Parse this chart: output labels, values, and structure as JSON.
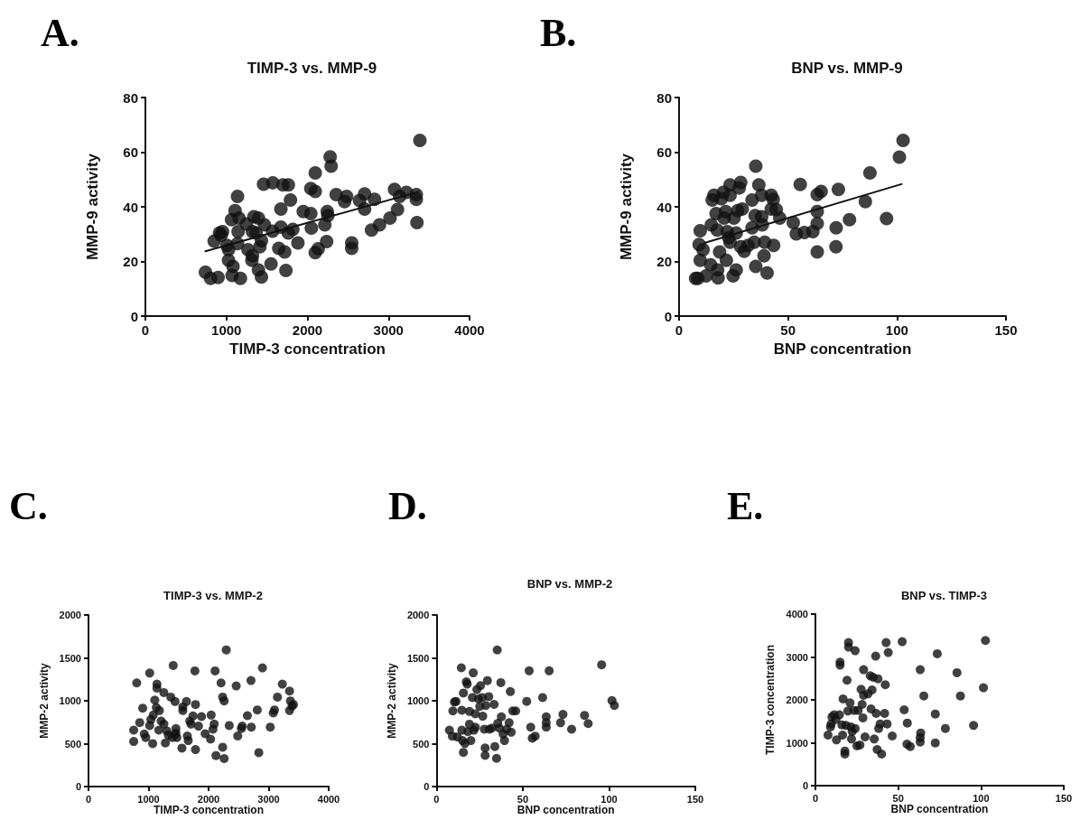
{
  "chart_data": [
    {
      "type": "scatter",
      "title": "TIMP-3 vs. MMP-9",
      "xlabel": "TIMP-3 concentration",
      "ylabel": "MMP-9 activity",
      "annotations": [
        "A."
      ],
      "marker": "circle",
      "xlim": [
        0,
        4000
      ],
      "xticks": [
        0,
        1000,
        2000,
        3000,
        4000
      ],
      "ylim": [
        0,
        80
      ],
      "yticks": [
        0,
        20,
        40,
        60,
        80
      ],
      "series": [
        {
          "color": "#111111",
          "x": [
            741,
            804,
            897,
            849,
            915,
            952,
            934,
            1137,
            1107,
            1063,
            1155,
            1007,
            1026,
            1137,
            1026,
            1081,
            1070,
            1173,
            1144,
            1247,
            1266,
            1321,
            1339,
            1395,
            1469,
            1365,
            1432,
            1413,
            1321,
            1314,
            1395,
            1432,
            1458,
            1572,
            1550,
            1568,
            1672,
            1672,
            1646,
            1719,
            1734,
            1697,
            1764,
            1790,
            1764,
            1819,
            1882,
            1948,
            2041,
            2048,
            2096,
            2041,
            2096,
            2096,
            2133,
            2214,
            2244,
            2251,
            2236,
            2280,
            2292,
            2354,
            2458,
            2483,
            2546,
            2546,
            2642,
            2705,
            2705,
            2827,
            2790,
            2889,
            3018,
            3074,
            3111,
            3137,
            3221,
            3343,
            3343,
            3351,
            3387
          ],
          "values": [
            16,
            13.8,
            14.1,
            27.4,
            30.4,
            30.9,
            29.6,
            43.8,
            38.6,
            35.3,
            35.9,
            25.9,
            24.3,
            26.5,
            20.4,
            18.2,
            14.9,
            13.8,
            30.9,
            33.7,
            24.3,
            30.9,
            36.4,
            35.9,
            33.4,
            30.4,
            27.6,
            25.4,
            22.1,
            20.4,
            16.9,
            14.3,
            48.3,
            48.8,
            19.1,
            31.1,
            32.6,
            39.2,
            24.8,
            23.5,
            16.7,
            48,
            48,
            42.5,
            30.4,
            31.7,
            26.8,
            38.3,
            37.5,
            32.2,
            52.4,
            46.7,
            45.6,
            23.2,
            24.6,
            33.4,
            38.3,
            36.8,
            27.3,
            58.3,
            54.9,
            44.5,
            41.9,
            43.8,
            26.8,
            24.8,
            42.3,
            44.7,
            39.2,
            42.7,
            31.5,
            33.4,
            35.9,
            46.4,
            39,
            43.8,
            45.3,
            44.5,
            42.7,
            34.2,
            64.3
          ]
        },
        {
          "type": "line",
          "marker": "none",
          "color": "#111111",
          "x": [
            740,
            3370
          ],
          "values": [
            23.7,
            45.5
          ]
        }
      ]
    },
    {
      "type": "scatter",
      "title": "BNP vs. MMP-9",
      "xlabel": "BNP concentration",
      "ylabel": "MMP-9 activity",
      "annotations": [
        "B."
      ],
      "marker": "circle",
      "xlim": [
        0,
        150
      ],
      "xticks": [
        0,
        50,
        100,
        150
      ],
      "ylim": [
        0,
        80
      ],
      "yticks": [
        0,
        20,
        40,
        60,
        80
      ],
      "series": [
        {
          "color": "#111111",
          "x": [
            7.6,
            8.6,
            9.7,
            9.7,
            9.2,
            11,
            12.4,
            14.5,
            14.8,
            15.2,
            16,
            17,
            17.7,
            17.9,
            17.5,
            18.6,
            19.4,
            20.3,
            20.7,
            21.4,
            21.7,
            22.1,
            22.8,
            23.4,
            23.4,
            23.4,
            25.2,
            24.8,
            26.2,
            26.2,
            26.9,
            27.6,
            28.3,
            29,
            28.3,
            29.9,
            31.7,
            33.5,
            33.5,
            34.5,
            35.2,
            35.2,
            36.6,
            34.9,
            37.9,
            37.9,
            38.2,
            39,
            39.3,
            40.4,
            42.3,
            43.2,
            42.3,
            44.6,
            43.4,
            46.2,
            52.4,
            53.8,
            55.6,
            57.5,
            61.4,
            63.4,
            63.4,
            65.2,
            63.4,
            63.4,
            72.1,
            73.1,
            72,
            78.2,
            85.5,
            87.6,
            95.2,
            101.1,
            102.8
          ],
          "values": [
            13.8,
            13.8,
            31.2,
            20.4,
            26.2,
            24.3,
            14.7,
            18.8,
            33.4,
            42.5,
            44.2,
            37.5,
            16.9,
            14,
            31.5,
            23.5,
            43,
            45.3,
            35.9,
            38.3,
            20.4,
            30.9,
            28.7,
            44.2,
            48,
            27,
            35.9,
            14.7,
            16.9,
            30.4,
            38.6,
            46.9,
            48.9,
            39.2,
            25.4,
            23.7,
            25.9,
            42.5,
            32.3,
            27,
            54.9,
            18.2,
            48,
            36.8,
            44.2,
            36.4,
            33.4,
            22.1,
            27,
            15.8,
            44.2,
            42.7,
            39.2,
            39,
            25.9,
            35.9,
            34.2,
            30.1,
            48.2,
            30.6,
            30.9,
            38.3,
            44.5,
            45.6,
            33.9,
            23.5,
            32.3,
            46.4,
            25.4,
            35.3,
            41.9,
            52.4,
            35.7,
            58.2,
            64.3
          ]
        },
        {
          "type": "line",
          "marker": "none",
          "color": "#111111",
          "x": [
            11.7,
            102.1
          ],
          "values": [
            26.8,
            48.3
          ]
        }
      ]
    },
    {
      "type": "scatter",
      "title": "TIMP-3 vs. MMP-2",
      "xlabel": "TIMP-3 concentration",
      "ylabel": "MMP-2 activity",
      "annotations": [
        "C."
      ],
      "marker": "circle",
      "xlim": [
        0,
        4000
      ],
      "xticks": [
        0,
        1000,
        2000,
        3000,
        4000
      ],
      "ylim": [
        0,
        2000
      ],
      "yticks": [
        0,
        500,
        1000,
        1500,
        2000
      ],
      "series": [
        {
          "color": "#111111",
          "x": [
            753,
            753,
            803,
            853,
            903,
            929,
            954,
            1019,
            1019,
            1039,
            1069,
            1079,
            1104,
            1130,
            1140,
            1140,
            1180,
            1170,
            1210,
            1255,
            1255,
            1280,
            1305,
            1330,
            1370,
            1396,
            1411,
            1441,
            1441,
            1456,
            1471,
            1456,
            1556,
            1571,
            1571,
            1631,
            1646,
            1661,
            1686,
            1707,
            1741,
            1772,
            1782,
            1782,
            1832,
            1882,
            1943,
            2033,
            2043,
            2073,
            2093,
            2108,
            2123,
            2208,
            2234,
            2259,
            2234,
            2259,
            2294,
            2344,
            2460,
            2485,
            2545,
            2560,
            2646,
            2706,
            2711,
            2811,
            2836,
            2897,
            3027,
            3077,
            3097,
            3147,
            3228,
            3348,
            3363,
            3389,
            3414,
            3348
          ],
          "values": [
            658,
            525,
            1208,
            746,
            914,
            613,
            571,
            1323,
            711,
            781,
            501,
            833,
            1008,
            921,
            1148,
            1194,
            886,
            658,
            763,
            1096,
            728,
            508,
            648,
            599,
            1043,
            571,
            1411,
            991,
            606,
            676,
            571,
            623,
            448,
            928,
            886,
            991,
            589,
            536,
            763,
            728,
            823,
            1348,
            956,
            431,
            704,
            816,
            616,
            553,
            833,
            669,
            728,
            1348,
            361,
            1208,
            1043,
            998,
            459,
            326,
            1593,
            711,
            1173,
            589,
            676,
            704,
            826,
            1236,
            693,
            893,
            396,
            1383,
            693,
            858,
            893,
            1043,
            1194,
            1113,
            998,
            938,
            956,
            886
          ]
        }
      ]
    },
    {
      "type": "scatter",
      "title": "BNP vs. MMP-2",
      "xlabel": "BNP concentration",
      "ylabel": "MMP-2 activity",
      "annotations": [
        "D."
      ],
      "marker": "circle",
      "xlim": [
        0,
        150
      ],
      "xticks": [
        0,
        50,
        100,
        150
      ],
      "ylim": [
        0,
        2000
      ],
      "yticks": [
        0,
        500,
        1000,
        1500,
        2000
      ],
      "series": [
        {
          "color": "#111111",
          "x": [
            7.5,
            9.2,
            10.4,
            9.5,
            11.3,
            12.1,
            14.4,
            14.7,
            14.7,
            15.1,
            15.6,
            15.6,
            16.5,
            17.3,
            17.8,
            18.2,
            19.1,
            19.1,
            19.9,
            20.8,
            21.3,
            21.7,
            22.5,
            22.5,
            23.4,
            24.3,
            25.1,
            25.5,
            26.5,
            26.8,
            28.2,
            28.2,
            27.7,
            28.6,
            29.5,
            30.3,
            30.7,
            32.1,
            33.4,
            33.8,
            34.8,
            35.2,
            35.5,
            36.4,
            37.3,
            37.6,
            38.6,
            39.4,
            40.7,
            42.8,
            42.1,
            43.3,
            44.2,
            45.9,
            52.3,
            53.7,
            54.6,
            55.5,
            57.2,
            61.5,
            63.6,
            63.6,
            63.6,
            65.3,
            71.9,
            73.3,
            78.3,
            85.8,
            87.9,
            95.7,
            101.7,
            103.1
          ],
          "values": [
            657,
            588,
            986,
            882,
            993,
            578,
            1384,
            889,
            657,
            536,
            398,
            1090,
            502,
            1221,
            1194,
            640,
            727,
            875,
            536,
            1038,
            1325,
            657,
            692,
            848,
            1131,
            1021,
            934,
            1176,
            1038,
            820,
            450,
            363,
            668,
            945,
            1235,
            1048,
            668,
            682,
            958,
            467,
            329,
            1592,
            737,
            682,
            1211,
            813,
            612,
            536,
            668,
            1107,
            744,
            633,
            882,
            882,
            993,
            1349,
            692,
            564,
            588,
            1038,
            813,
            744,
            692,
            1349,
            744,
            841,
            668,
            830,
            734,
            1419,
            1003,
            945
          ]
        }
      ]
    },
    {
      "type": "scatter",
      "title": "BNP vs. TIMP-3",
      "xlabel": "BNP concentration",
      "ylabel": "TIMP-3 concentration",
      "annotations": [
        "E."
      ],
      "marker": "circle",
      "xlim": [
        0,
        150
      ],
      "xticks": [
        0,
        50,
        100,
        150
      ],
      "ylim": [
        0,
        4000
      ],
      "yticks": [
        0,
        1000,
        2000,
        3000,
        4000
      ],
      "series": [
        {
          "color": "#111111",
          "x": [
            7.6,
            9.5,
            9.1,
            10,
            11.3,
            12.7,
            12.4,
            14.5,
            14.9,
            14.9,
            16,
            16.7,
            16.4,
            17.8,
            17.8,
            19.1,
            18.5,
            20,
            20,
            19.6,
            20.9,
            21.5,
            21.8,
            22.2,
            23.3,
            24,
            24,
            25.1,
            25.8,
            26.9,
            27.6,
            28.2,
            28.7,
            29.1,
            29.1,
            30,
            31.8,
            33.1,
            33.6,
            34.2,
            34.9,
            35.5,
            36.4,
            36.7,
            37.3,
            37.8,
            38.2,
            39.1,
            40,
            41.8,
            42.2,
            43.3,
            42.7,
            44,
            46.4,
            52.4,
            53.6,
            55.3,
            55.5,
            57.3,
            63.3,
            63.3,
            63.3,
            63.6,
            65.5,
            72.4,
            72.4,
            73.6,
            78.5,
            85.5,
            87.6,
            95.5,
            101.5,
            102.7
          ],
          "values": [
            1179,
            1439,
            1369,
            1601,
            1650,
            1067,
            1544,
            1650,
            2878,
            2808,
            1418,
            2022,
            1179,
            807,
            737,
            2457,
            1404,
            3335,
            3229,
            1741,
            1931,
            1369,
            1088,
            1264,
            1755,
            3145,
            1334,
            927,
            1755,
            948,
            2246,
            1895,
            1580,
            2703,
            2106,
            1137,
            2141,
            2562,
            1790,
            2232,
            2527,
            1088,
            3019,
            1685,
            842,
            2492,
            1334,
            1439,
            737,
            1685,
            2352,
            1439,
            3335,
            3103,
            1158,
            3356,
            1769,
            969,
            1460,
            913,
            2703,
            1123,
            1018,
            1228,
            2092,
            997,
            1671,
            3075,
            1334,
            2633,
            2092,
            1404,
            2282,
            3384
          ]
        }
      ]
    }
  ]
}
